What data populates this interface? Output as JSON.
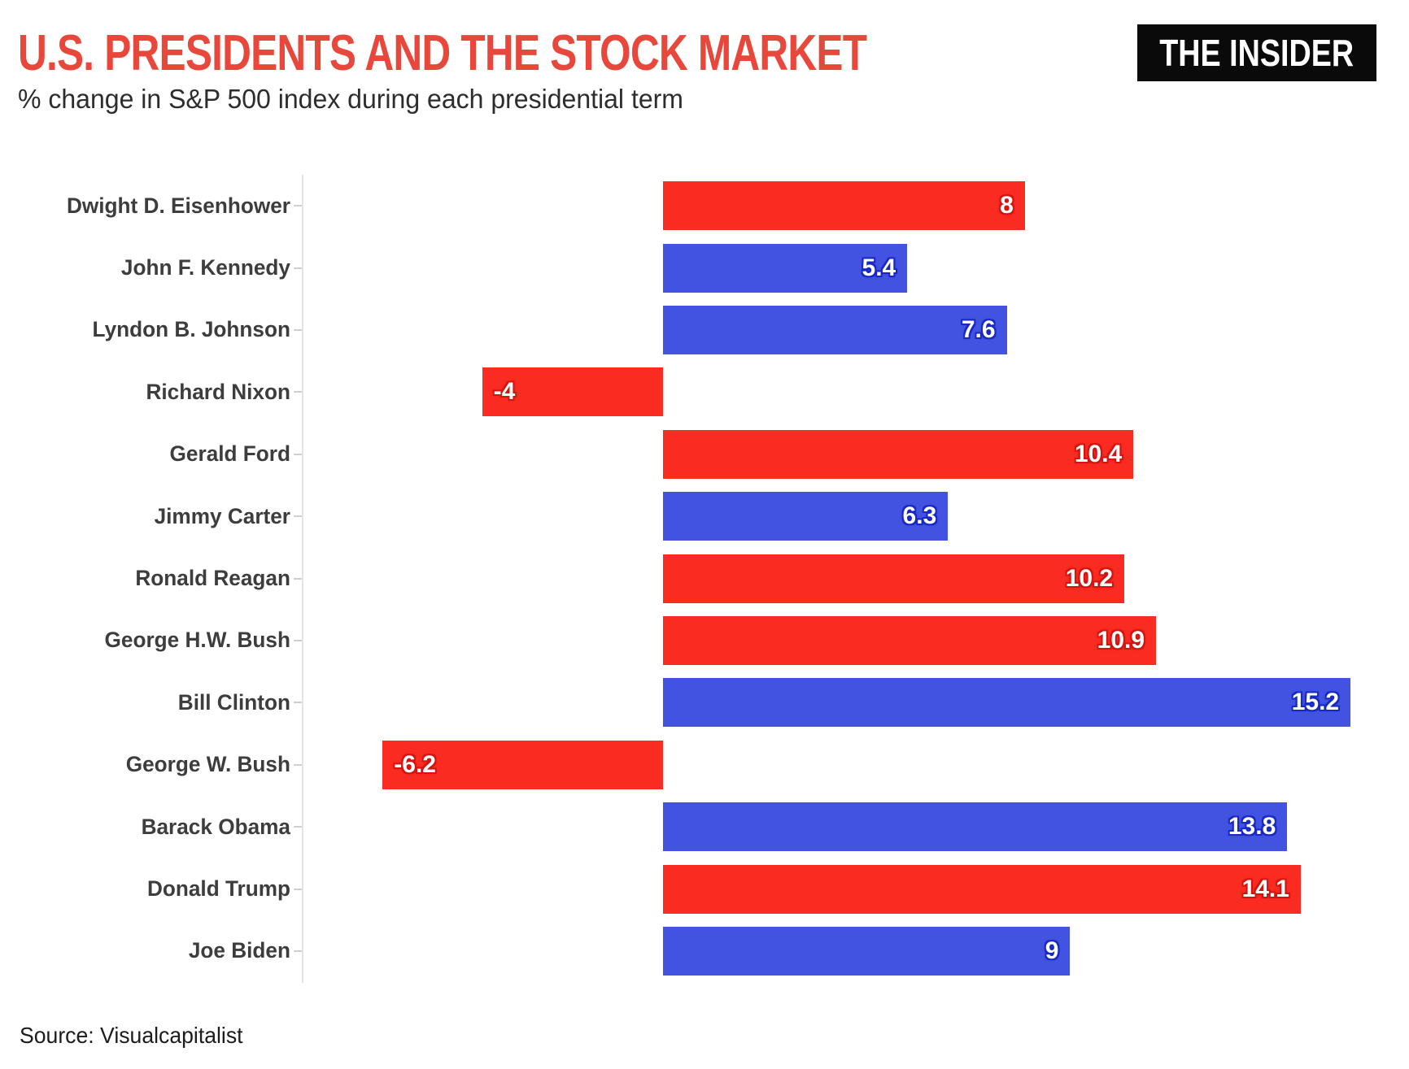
{
  "header": {
    "title": "U.S. PRESIDENTS AND THE STOCK MARKET",
    "subtitle": "% change in S&P 500 index during each presidential term",
    "logo": "THE INSIDER"
  },
  "footer": {
    "source": "Source: Visualcapitalist"
  },
  "colors": {
    "title_red": "#e8483c",
    "republican_bar": "#fa2b21",
    "democrat_bar": "#4353e1",
    "republican_label_halo": "#d21510",
    "democrat_label_halo": "#1728c4",
    "category_label": "#3d3d3d",
    "axis": "#e4e4e4",
    "logo_background": "#0a0a0a",
    "logo_text": "#ffffff"
  },
  "chart_data": {
    "type": "bar",
    "orientation": "horizontal",
    "title": "U.S. PRESIDENTS AND THE STOCK MARKET",
    "subtitle": "% change in S&P 500 index during each presidential term",
    "xlabel": "",
    "ylabel": "",
    "categories": [
      "Dwight D. Eisenhower",
      "John F. Kennedy",
      "Lyndon B. Johnson",
      "Richard Nixon",
      "Gerald Ford",
      "Jimmy Carter",
      "Ronald Reagan",
      "George H.W. Bush",
      "Bill Clinton",
      "George W. Bush",
      "Barack Obama",
      "Donald Trump",
      "Joe Biden"
    ],
    "values": [
      8,
      5.4,
      7.6,
      -4,
      10.4,
      6.3,
      10.2,
      10.9,
      15.2,
      -6.2,
      13.8,
      14.1,
      9
    ],
    "value_labels": [
      "8",
      "5.4",
      "7.6",
      "-4",
      "10.4",
      "6.3",
      "10.2",
      "10.9",
      "15.2",
      "-6.2",
      "13.8",
      "14.1",
      "9"
    ],
    "parties": [
      "R",
      "D",
      "D",
      "R",
      "R",
      "D",
      "R",
      "R",
      "D",
      "R",
      "D",
      "R",
      "D"
    ],
    "party_colors": {
      "R": "#fa2b21",
      "D": "#4353e1"
    },
    "xlim": [
      -8,
      16.6
    ],
    "grid": false,
    "legend": false,
    "value_label_position": "inside-end",
    "source": "Source: Visualcapitalist"
  }
}
